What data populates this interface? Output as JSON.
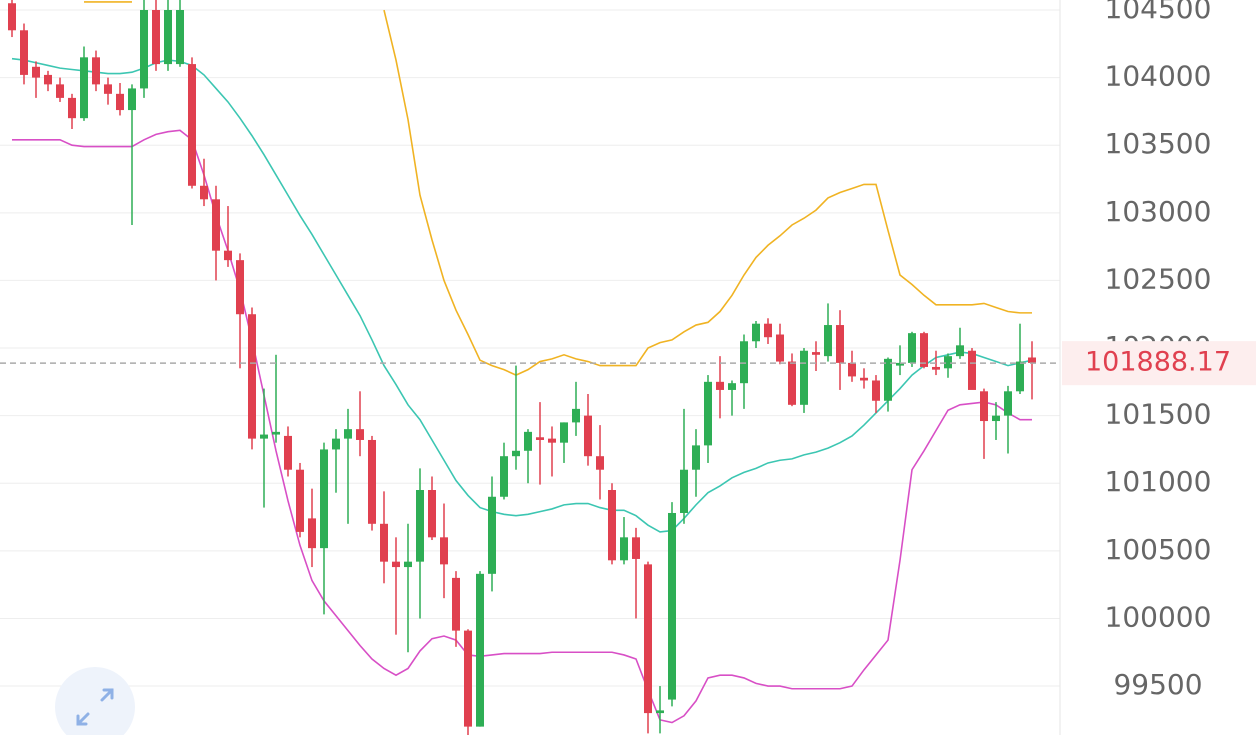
{
  "chart_data": {
    "type": "candlestick",
    "ylim": [
      99138,
      104574
    ],
    "yticks": [
      99500,
      100000,
      100500,
      101000,
      101500,
      102000,
      102500,
      103000,
      103500,
      104000,
      104500
    ],
    "grid": true,
    "up_color": "#2eae55",
    "down_color": "#e0404f",
    "last_price": 101888.17,
    "open": [
      104550,
      104350,
      104080,
      104020,
      103950,
      103850,
      103700,
      104150,
      103950,
      103880,
      103760,
      103920,
      104500,
      104100,
      104100,
      104100,
      103200,
      103100,
      102720,
      102650,
      102250,
      101330,
      101360,
      101350,
      101100,
      100740,
      100520,
      101250,
      101330,
      101400,
      101320,
      100700,
      100420,
      100380,
      100420,
      100950,
      100600,
      100300,
      99910,
      99200,
      100330,
      100900,
      101200,
      101240,
      101340,
      101330,
      101300,
      101450,
      101500,
      101200,
      100950,
      100430,
      100600,
      100400,
      99300,
      99400,
      100780,
      101100,
      101280,
      101750,
      101690,
      101740,
      102050,
      102180,
      102100,
      101900,
      101580,
      101970,
      101940,
      102170,
      101890,
      101780,
      101760,
      101610,
      101870,
      101890,
      102110,
      101860,
      101850,
      101940,
      101980,
      101680,
      101460,
      101500,
      101680,
      101930
    ],
    "high": [
      104574,
      104400,
      104120,
      104050,
      104000,
      103880,
      104230,
      104200,
      104000,
      103960,
      103950,
      104574,
      104574,
      104574,
      104574,
      104150,
      103400,
      103200,
      103050,
      102700,
      102300,
      101700,
      101950,
      101420,
      101150,
      100960,
      101300,
      101400,
      101550,
      101680,
      101350,
      100940,
      100600,
      100700,
      101110,
      101050,
      100850,
      100350,
      99920,
      100350,
      101050,
      101300,
      101870,
      101400,
      101600,
      101420,
      101450,
      101750,
      101660,
      101430,
      101000,
      100750,
      100670,
      100420,
      99500,
      100860,
      101550,
      101400,
      101800,
      101940,
      101760,
      102100,
      102200,
      102220,
      102180,
      101960,
      102000,
      102050,
      102330,
      102280,
      101980,
      101850,
      101800,
      101930,
      102020,
      102120,
      102120,
      101980,
      101960,
      102150,
      102000,
      101700,
      101600,
      101720,
      102180,
      102050
    ],
    "low": [
      104300,
      103950,
      103850,
      103900,
      103820,
      103620,
      103680,
      103900,
      103800,
      103720,
      102910,
      103850,
      104050,
      104050,
      104080,
      103180,
      103050,
      102500,
      102600,
      101850,
      101250,
      100820,
      101300,
      101050,
      100600,
      100380,
      100030,
      100930,
      100700,
      101200,
      100650,
      100260,
      99880,
      99750,
      100000,
      100580,
      100150,
      99790,
      99138,
      99200,
      100200,
      100880,
      101100,
      101000,
      100990,
      101050,
      101150,
      101350,
      101130,
      100880,
      100400,
      100400,
      100000,
      99150,
      99150,
      99350,
      100700,
      100900,
      101150,
      101480,
      101500,
      101550,
      102000,
      102030,
      101880,
      101570,
      101520,
      101830,
      101900,
      101690,
      101750,
      101700,
      101520,
      101530,
      101800,
      101860,
      101850,
      101800,
      101780,
      101920,
      101700,
      101180,
      101320,
      101220,
      101660,
      101620
    ],
    "close": [
      104350,
      104020,
      104000,
      103950,
      103850,
      103700,
      104150,
      103950,
      103880,
      103760,
      103920,
      104500,
      104100,
      104500,
      104500,
      103200,
      103100,
      102720,
      102650,
      102250,
      101330,
      101360,
      101380,
      101100,
      100640,
      100520,
      101250,
      101330,
      101400,
      101320,
      100700,
      100420,
      100380,
      100420,
      100950,
      100600,
      100400,
      99910,
      99200,
      100330,
      100900,
      101200,
      101240,
      101380,
      101320,
      101300,
      101450,
      101550,
      101200,
      101100,
      100430,
      100600,
      100440,
      99300,
      99320,
      100780,
      101100,
      101280,
      101750,
      101690,
      101740,
      102050,
      102180,
      102080,
      101900,
      101580,
      101980,
      101950,
      102170,
      101890,
      101790,
      101760,
      101610,
      101920,
      101890,
      102110,
      101860,
      101840,
      101940,
      102020,
      101690,
      101460,
      101500,
      101680,
      101900,
      101890
    ],
    "bands": [
      {
        "color": "#f0b323",
        "values": [
          null,
          null,
          null,
          null,
          null,
          null,
          104560,
          104560,
          104560,
          104560,
          104560,
          null,
          null,
          null,
          null,
          null,
          null,
          null,
          null,
          null,
          null,
          null,
          null,
          null,
          null,
          null,
          null,
          null,
          null,
          null,
          null,
          104500,
          104130,
          103690,
          103130,
          102800,
          102500,
          102280,
          102100,
          101910,
          101870,
          101840,
          101800,
          101840,
          101900,
          101920,
          101950,
          101920,
          101900,
          101870,
          101870,
          101870,
          101870,
          102000,
          102040,
          102060,
          102120,
          102170,
          102190,
          102270,
          102390,
          102540,
          102670,
          102760,
          102830,
          102910,
          102960,
          103020,
          103110,
          103150,
          103180,
          103210,
          103210,
          102870,
          102540,
          102470,
          102390,
          102320,
          102320,
          102320,
          102320,
          102330,
          102300,
          102270,
          102260,
          102260
        ]
      },
      {
        "color": "#3cc6b2",
        "values": [
          104140,
          104130,
          104110,
          104090,
          104070,
          104060,
          104050,
          104040,
          104030,
          104030,
          104040,
          104070,
          104110,
          104130,
          104120,
          104090,
          104020,
          103920,
          103820,
          103700,
          103570,
          103430,
          103280,
          103130,
          102980,
          102840,
          102690,
          102540,
          102390,
          102240,
          102060,
          101870,
          101730,
          101580,
          101470,
          101320,
          101170,
          101020,
          100910,
          100820,
          100790,
          100770,
          100760,
          100770,
          100790,
          100810,
          100840,
          100850,
          100850,
          100820,
          100800,
          100800,
          100760,
          100690,
          100640,
          100650,
          100740,
          100840,
          100930,
          100980,
          101040,
          101080,
          101110,
          101150,
          101170,
          101180,
          101210,
          101230,
          101260,
          101300,
          101350,
          101430,
          101520,
          101610,
          101700,
          101800,
          101870,
          101930,
          101950,
          101970,
          101960,
          101930,
          101900,
          101870,
          101890,
          101910
        ]
      },
      {
        "color": "#d84fc6",
        "values": [
          103540,
          103540,
          103540,
          103540,
          103540,
          103500,
          103490,
          103490,
          103490,
          103490,
          103490,
          103540,
          103580,
          103600,
          103610,
          103540,
          103280,
          102980,
          102720,
          102430,
          102060,
          101650,
          101240,
          100870,
          100540,
          100280,
          100130,
          100020,
          99910,
          99800,
          99700,
          99630,
          99580,
          99630,
          99760,
          99850,
          99870,
          99840,
          99730,
          99720,
          99730,
          99740,
          99740,
          99740,
          99740,
          99750,
          99750,
          99750,
          99750,
          99750,
          99750,
          99730,
          99700,
          99470,
          99250,
          99230,
          99280,
          99390,
          99560,
          99580,
          99580,
          99560,
          99520,
          99500,
          99500,
          99480,
          99480,
          99480,
          99480,
          99480,
          99500,
          99620,
          99730,
          99840,
          100430,
          101100,
          101240,
          101390,
          101540,
          101580,
          101590,
          101600,
          101580,
          101520,
          101470,
          101470
        ]
      }
    ]
  }
}
